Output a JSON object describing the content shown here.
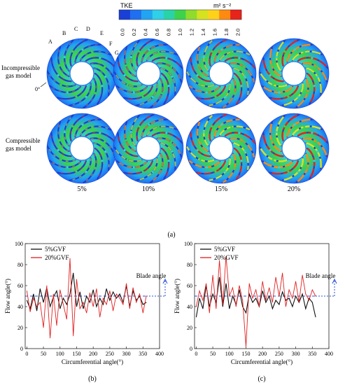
{
  "colorbar": {
    "title": "TKE",
    "unit": "m² s⁻²",
    "ticks": [
      "0.0",
      "0.2",
      "0.4",
      "0.6",
      "0.8",
      "1.0",
      "1.2",
      "1.4",
      "1.6",
      "1.8",
      "2.0"
    ],
    "colors": [
      "#1a3fd6",
      "#1f6ff0",
      "#21a4f2",
      "#2fd0e8",
      "#29d3a8",
      "#3cd24c",
      "#8fdc2c",
      "#d6e21f",
      "#ffd21a",
      "#ff8a12",
      "#e8231a"
    ]
  },
  "row_labels": {
    "incompressible": [
      "Incompressible",
      "gas model"
    ],
    "compressible": [
      "Compressible",
      "gas model"
    ]
  },
  "blade_letters": [
    "A",
    "B",
    "C",
    "D",
    "E",
    "F",
    "G"
  ],
  "angle_zero": "0°",
  "column_labels": [
    "5%",
    "10%",
    "15%",
    "20%"
  ],
  "panel_a_label": "(a)",
  "chart_data": [
    {
      "type": "line",
      "panel": "(b)",
      "xlabel": "Circumferential angle(°)",
      "ylabel": "Flow angle(°)",
      "xlim": [
        -5,
        400
      ],
      "ylim": [
        0,
        100
      ],
      "xticks": [
        0,
        50,
        100,
        150,
        200,
        250,
        300,
        350,
        400
      ],
      "yticks": [
        0,
        20,
        40,
        60,
        80,
        100
      ],
      "blade_angle": 50,
      "blade_angle_label": "Blade angle",
      "series": [
        {
          "name": "5%GVF",
          "color": "#111111",
          "x": [
            0,
            10,
            20,
            30,
            40,
            50,
            60,
            70,
            80,
            90,
            100,
            110,
            120,
            130,
            140,
            150,
            160,
            170,
            180,
            190,
            200,
            210,
            220,
            230,
            240,
            250,
            260,
            270,
            280,
            290,
            300,
            310,
            320,
            330,
            340,
            350,
            360
          ],
          "y": [
            46,
            38,
            52,
            36,
            57,
            44,
            58,
            40,
            49,
            55,
            38,
            48,
            42,
            52,
            72,
            40,
            54,
            38,
            50,
            44,
            56,
            40,
            48,
            42,
            57,
            46,
            54,
            48,
            52,
            44,
            60,
            40,
            55,
            46,
            50,
            42,
            44
          ]
        },
        {
          "name": "20%GVF",
          "color": "#e02020",
          "x": [
            0,
            10,
            20,
            30,
            40,
            50,
            60,
            70,
            80,
            90,
            100,
            110,
            120,
            130,
            140,
            150,
            160,
            170,
            180,
            190,
            200,
            210,
            220,
            230,
            240,
            250,
            260,
            270,
            280,
            290,
            300,
            310,
            320,
            330,
            340,
            350,
            360
          ],
          "y": [
            55,
            35,
            48,
            40,
            44,
            20,
            60,
            10,
            52,
            22,
            56,
            42,
            28,
            86,
            12,
            66,
            38,
            44,
            34,
            53,
            40,
            57,
            30,
            48,
            42,
            55,
            36,
            52,
            48,
            42,
            62,
            38,
            58,
            44,
            52,
            34,
            50
          ]
        }
      ]
    },
    {
      "type": "line",
      "panel": "(c)",
      "xlabel": "Circumferential angle(°)",
      "ylabel": "Flow angle(°)",
      "xlim": [
        -5,
        400
      ],
      "ylim": [
        0,
        100
      ],
      "xticks": [
        0,
        50,
        100,
        150,
        200,
        250,
        300,
        350,
        400
      ],
      "yticks": [
        0,
        20,
        40,
        60,
        80,
        100
      ],
      "blade_angle": 50,
      "blade_angle_label": "Blade angle",
      "series": [
        {
          "name": "5%GVF",
          "color": "#111111",
          "x": [
            0,
            10,
            20,
            30,
            40,
            50,
            60,
            70,
            80,
            90,
            100,
            110,
            120,
            130,
            140,
            150,
            160,
            170,
            180,
            190,
            200,
            210,
            220,
            230,
            240,
            250,
            260,
            270,
            280,
            290,
            300,
            310,
            320,
            330,
            340,
            350,
            360
          ],
          "y": [
            30,
            48,
            38,
            60,
            40,
            52,
            44,
            68,
            40,
            62,
            38,
            50,
            42,
            56,
            40,
            34,
            52,
            44,
            48,
            40,
            55,
            44,
            50,
            38,
            46,
            42,
            54,
            46,
            48,
            40,
            50,
            44,
            52,
            38,
            48,
            44,
            30
          ]
        },
        {
          "name": "20%GVF",
          "color": "#e02020",
          "x": [
            0,
            10,
            20,
            30,
            40,
            50,
            60,
            70,
            80,
            90,
            100,
            110,
            120,
            130,
            140,
            150,
            160,
            170,
            180,
            190,
            200,
            210,
            220,
            230,
            240,
            250,
            260,
            270,
            280,
            290,
            300,
            310,
            320,
            330,
            340,
            350,
            360
          ],
          "y": [
            40,
            55,
            46,
            62,
            34,
            70,
            38,
            84,
            42,
            88,
            50,
            58,
            40,
            60,
            46,
            2,
            62,
            48,
            56,
            40,
            64,
            46,
            58,
            44,
            68,
            50,
            72,
            40,
            56,
            48,
            64,
            44,
            70,
            52,
            46,
            56,
            50
          ]
        }
      ]
    }
  ]
}
